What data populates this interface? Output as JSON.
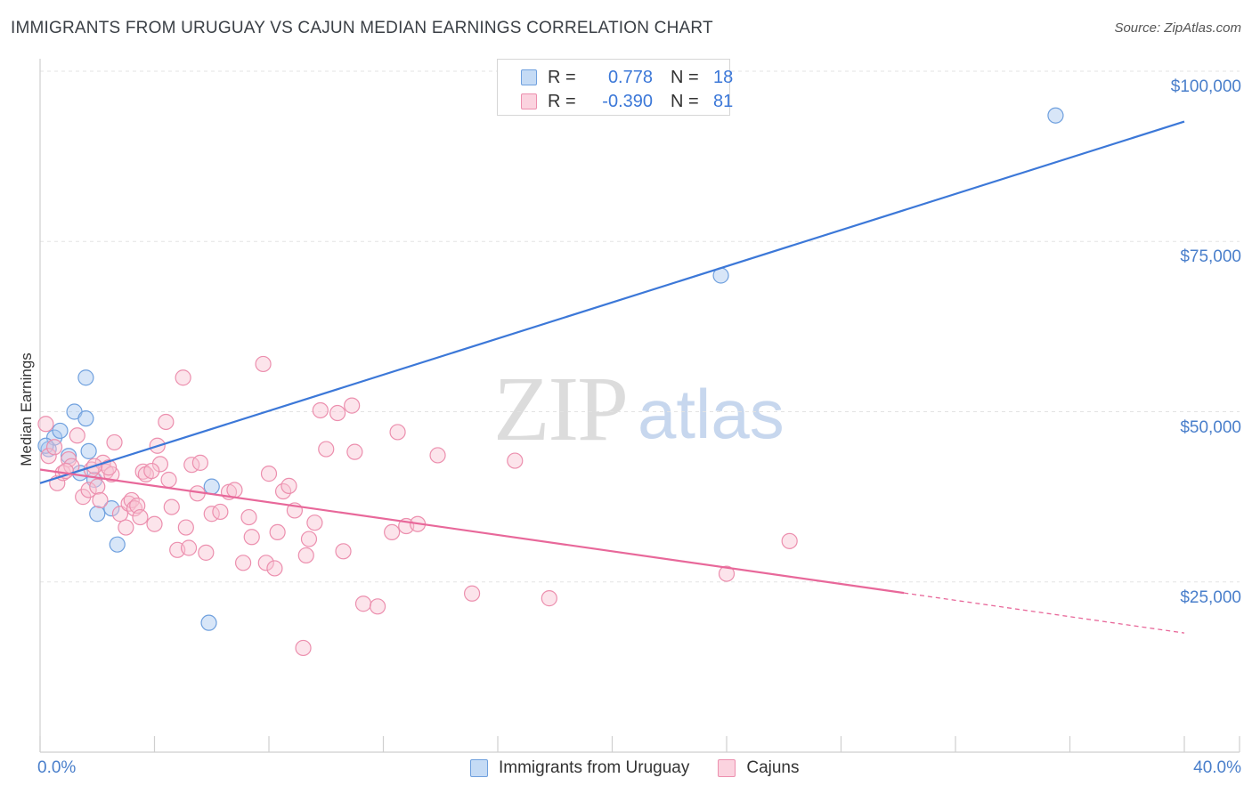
{
  "title": "IMMIGRANTS FROM URUGUAY VS CAJUN MEDIAN EARNINGS CORRELATION CHART",
  "source": "Source: ZipAtlas.com",
  "watermark": {
    "zip": "ZIP",
    "atlas": "atlas"
  },
  "legend_top": {
    "rows": [
      {
        "r_label": "R =",
        "r_value": "0.778",
        "n_label": "N =",
        "n_value": "18",
        "color": "#a8c8f0",
        "border": "#6fa0de"
      },
      {
        "r_label": "R =",
        "r_value": "-0.390",
        "n_label": "N =",
        "n_value": "81",
        "color": "#f8c3d3",
        "border": "#ec8fae"
      }
    ]
  },
  "legend_bottom": {
    "items": [
      {
        "label": "Immigrants from Uruguay",
        "color": "#c5dbf5",
        "border": "#6fa0de"
      },
      {
        "label": "Cajuns",
        "color": "#fbd3df",
        "border": "#ec8fae"
      }
    ]
  },
  "chart_data": {
    "type": "scatter",
    "ylabel": "Median Earnings",
    "xlabel": "",
    "xlim": [
      0,
      40
    ],
    "ylim": [
      0,
      105000
    ],
    "x_tick_labels": [
      {
        "value": 0,
        "label": "0.0%"
      },
      {
        "value": 40,
        "label": "40.0%"
      }
    ],
    "y_tick_labels": [
      {
        "value": 100000,
        "label": "$100,000"
      },
      {
        "value": 75000,
        "label": "$75,000"
      },
      {
        "value": 50000,
        "label": "$50,000"
      },
      {
        "value": 25000,
        "label": "$25,000"
      }
    ],
    "series": [
      {
        "name": "Immigrants from Uruguay",
        "color": "#3c78d8",
        "fill": "#a8c8f0",
        "trend": {
          "x0": 0,
          "y0": 39500,
          "x1": 40,
          "y1": 92600,
          "dash_from": null
        },
        "points": [
          [
            0.3,
            44500
          ],
          [
            0.5,
            46200
          ],
          [
            0.7,
            47200
          ],
          [
            1.0,
            43500
          ],
          [
            1.4,
            41000
          ],
          [
            1.7,
            44200
          ],
          [
            1.2,
            50000
          ],
          [
            1.6,
            49000
          ],
          [
            1.6,
            55000
          ],
          [
            1.9,
            40000
          ],
          [
            2.0,
            35000
          ],
          [
            2.5,
            35800
          ],
          [
            2.7,
            30500
          ],
          [
            6.0,
            39000
          ],
          [
            5.9,
            19000
          ],
          [
            23.8,
            70000
          ],
          [
            35.5,
            93500
          ],
          [
            0.2,
            45000
          ]
        ]
      },
      {
        "name": "Cajuns",
        "color": "#e8689a",
        "fill": "#f8c3d3",
        "trend": {
          "x0": 0,
          "y0": 41500,
          "x1": 40,
          "y1": 17500,
          "dash_from": 30.2
        },
        "points": [
          [
            0.2,
            48200
          ],
          [
            0.3,
            43500
          ],
          [
            0.5,
            44800
          ],
          [
            0.6,
            39500
          ],
          [
            0.8,
            41000
          ],
          [
            1.0,
            43000
          ],
          [
            1.1,
            42000
          ],
          [
            1.3,
            46500
          ],
          [
            1.5,
            37500
          ],
          [
            1.7,
            38500
          ],
          [
            1.8,
            41500
          ],
          [
            2.0,
            39000
          ],
          [
            2.1,
            37000
          ],
          [
            2.2,
            42500
          ],
          [
            2.3,
            41200
          ],
          [
            2.5,
            40800
          ],
          [
            2.6,
            45500
          ],
          [
            2.8,
            35000
          ],
          [
            3.0,
            33000
          ],
          [
            3.1,
            36500
          ],
          [
            3.2,
            37000
          ],
          [
            3.3,
            35800
          ],
          [
            3.4,
            36200
          ],
          [
            3.5,
            34500
          ],
          [
            3.6,
            41200
          ],
          [
            3.7,
            40800
          ],
          [
            4.0,
            33500
          ],
          [
            4.1,
            45000
          ],
          [
            4.2,
            42300
          ],
          [
            4.4,
            48500
          ],
          [
            4.5,
            40000
          ],
          [
            4.6,
            36000
          ],
          [
            4.8,
            29700
          ],
          [
            5.1,
            33000
          ],
          [
            5.2,
            30000
          ],
          [
            5.3,
            42200
          ],
          [
            5.5,
            38000
          ],
          [
            5.6,
            42500
          ],
          [
            5.8,
            29300
          ],
          [
            6.0,
            35000
          ],
          [
            6.3,
            35300
          ],
          [
            6.6,
            38200
          ],
          [
            6.8,
            38500
          ],
          [
            7.1,
            27800
          ],
          [
            7.3,
            34500
          ],
          [
            7.4,
            31600
          ],
          [
            7.8,
            57000
          ],
          [
            7.9,
            27800
          ],
          [
            8.0,
            40900
          ],
          [
            8.2,
            27000
          ],
          [
            8.3,
            32300
          ],
          [
            8.5,
            38300
          ],
          [
            8.7,
            39100
          ],
          [
            8.9,
            35500
          ],
          [
            9.2,
            15300
          ],
          [
            9.3,
            28900
          ],
          [
            9.4,
            31300
          ],
          [
            9.6,
            33700
          ],
          [
            9.8,
            50200
          ],
          [
            10.0,
            44500
          ],
          [
            10.4,
            49800
          ],
          [
            10.6,
            29500
          ],
          [
            10.9,
            50900
          ],
          [
            11.0,
            44100
          ],
          [
            11.3,
            21800
          ],
          [
            11.8,
            21400
          ],
          [
            12.3,
            32300
          ],
          [
            12.5,
            47000
          ],
          [
            12.8,
            33200
          ],
          [
            13.2,
            33500
          ],
          [
            13.9,
            43600
          ],
          [
            15.1,
            23300
          ],
          [
            16.6,
            42800
          ],
          [
            17.8,
            22600
          ],
          [
            24.0,
            26200
          ],
          [
            26.2,
            31000
          ],
          [
            5.0,
            55000
          ],
          [
            2.4,
            41800
          ],
          [
            1.9,
            42000
          ],
          [
            0.9,
            41300
          ],
          [
            3.9,
            41300
          ]
        ]
      }
    ]
  }
}
